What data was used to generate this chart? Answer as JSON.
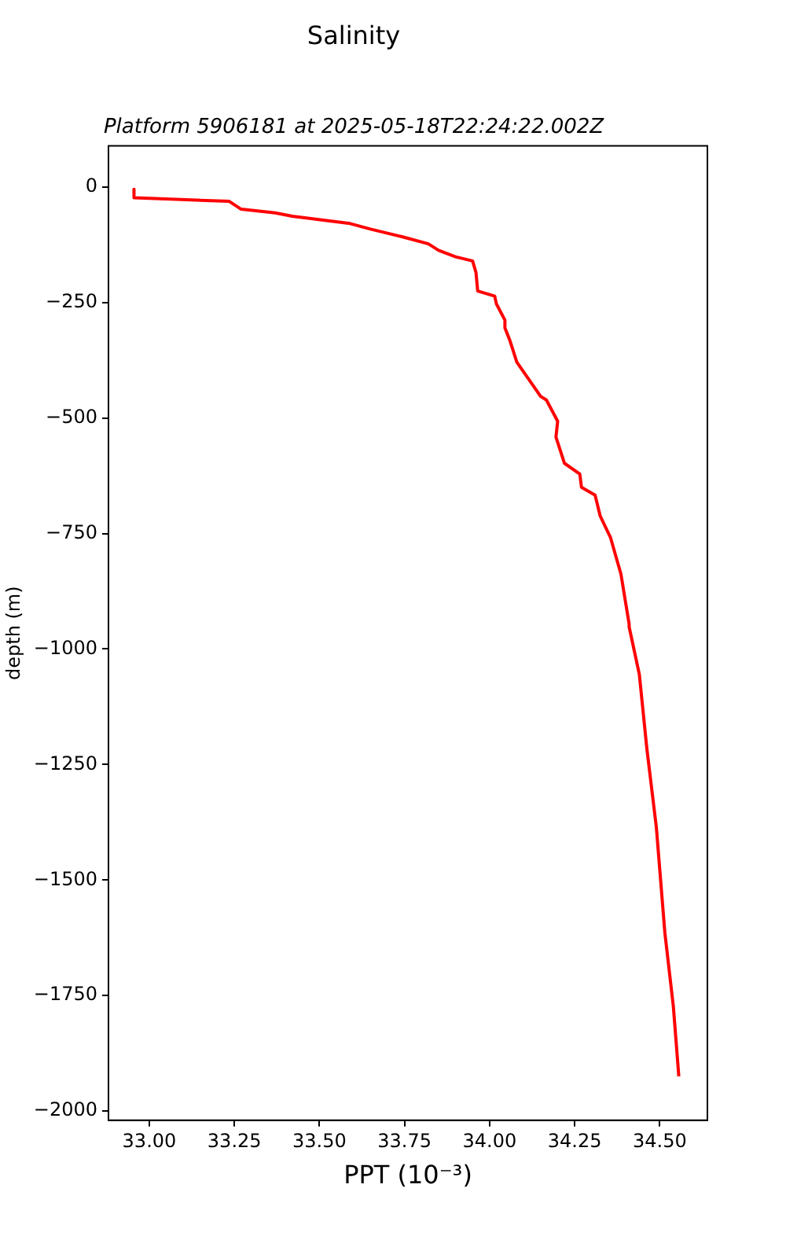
{
  "chart_data": {
    "type": "line",
    "title": "Salinity",
    "subtitle": "Platform 5906181 at 2025-05-18T22:24:22.002Z",
    "xlabel": "PPT (10⁻³)",
    "ylabel": "depth (m)",
    "series": [
      {
        "color": "#ff0000",
        "x": [
          32.955,
          32.955,
          33.235,
          33.27,
          33.37,
          33.42,
          33.59,
          33.65,
          33.74,
          33.82,
          33.85,
          33.9,
          33.95,
          33.96,
          33.965,
          34.015,
          34.02,
          34.045,
          34.045,
          34.06,
          34.08,
          34.15,
          34.167,
          34.2,
          34.195,
          34.22,
          34.265,
          34.27,
          34.31,
          34.325,
          34.355,
          34.386,
          34.41,
          34.41,
          34.44,
          34.462,
          34.49,
          34.515,
          34.54,
          34.556
        ],
        "values": [
          -5,
          -23,
          -31,
          -48,
          -56,
          -63,
          -79,
          -91,
          -107,
          -123,
          -137,
          -151,
          -160,
          -185,
          -225,
          -236,
          -253,
          -288,
          -305,
          -333,
          -379,
          -453,
          -461,
          -507,
          -541,
          -598,
          -621,
          -650,
          -667,
          -712,
          -758,
          -838,
          -946,
          -952,
          -1055,
          -1215,
          -1386,
          -1614,
          -1774,
          -1925
        ]
      }
    ],
    "xlim": [
      32.88,
      34.64
    ],
    "ylim": [
      -2020,
      89
    ],
    "xticks": [
      {
        "value": 33,
        "label": "33.00"
      },
      {
        "value": 33.25,
        "label": "33.25"
      },
      {
        "value": 33.5,
        "label": "33.50"
      },
      {
        "value": 33.75,
        "label": "33.75"
      },
      {
        "value": 34,
        "label": "34.00"
      },
      {
        "value": 34.25,
        "label": "34.25"
      },
      {
        "value": 34.5,
        "label": "34.50"
      }
    ],
    "yticks": [
      0,
      {
        "value": -250,
        "label": "−250"
      },
      {
        "value": -500,
        "label": "−500"
      },
      {
        "value": -750,
        "label": "−750"
      },
      {
        "value": -1000,
        "label": "−1000"
      },
      {
        "value": -1250,
        "label": "−1250"
      },
      {
        "value": -1500,
        "label": "−1500"
      },
      {
        "value": -1750,
        "label": "−1750"
      },
      {
        "value": -2000,
        "label": "−2000"
      }
    ],
    "grid": false,
    "legend": false,
    "marker": "none",
    "line_style": "solid"
  }
}
